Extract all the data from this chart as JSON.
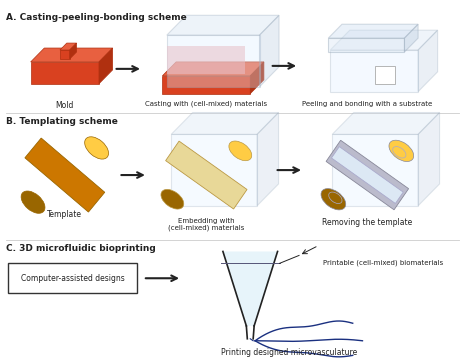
{
  "bg_color": "#ffffff",
  "section_A_title": "A. Casting-peeling-bonding scheme",
  "section_B_title": "B. Templating scheme",
  "section_C_title": "C. 3D microfluidic bioprinting",
  "section_A_labels": [
    "Mold",
    "Casting with (cell-mixed) materials",
    "Peeling and bonding with a substrate"
  ],
  "section_B_labels": [
    "Template",
    "Embedding with\n(cell-mixed) materials",
    "Removing the template"
  ],
  "section_C_labels": [
    "Computer-assisted designs",
    "Printable (cell-mixed) biomaterials",
    "Printing designed microvasculature"
  ],
  "arrow_color": "#222222",
  "red_color": "#d94120",
  "red_light": "#e86040",
  "red_dark": "#b03010",
  "orange_color": "#cc7700",
  "orange_light": "#ddaa44",
  "orange_dark": "#996600",
  "blue_color": "#1a3080",
  "box_line_color": "#99aabb",
  "box_face": "#ddeeff",
  "box_top": "#ccddf0",
  "box_right": "#bbcce0",
  "text_color": "#222222",
  "divider_color": "#cccccc",
  "gray_tube": "#bbbbcc",
  "gray_tube_inner": "#dce8f4"
}
